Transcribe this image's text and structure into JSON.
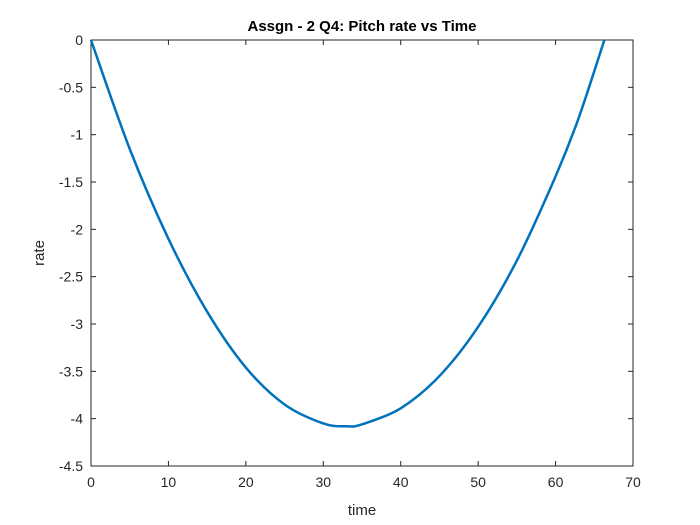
{
  "chart_data": {
    "type": "line",
    "title": "Assgn - 2 Q4: Pitch rate vs Time",
    "xlabel": "time",
    "ylabel": "rate",
    "xlim": [
      0,
      70
    ],
    "ylim": [
      -4.5,
      0
    ],
    "xticks": [
      0,
      10,
      20,
      30,
      40,
      50,
      60,
      70
    ],
    "xtick_labels": [
      "0",
      "10",
      "20",
      "30",
      "40",
      "50",
      "60",
      "70"
    ],
    "yticks": [
      0,
      -0.5,
      -1,
      -1.5,
      -2,
      -2.5,
      -3,
      -3.5,
      -4,
      -4.5
    ],
    "ytick_labels": [
      "0",
      "-0.5",
      "-1",
      "-1.5",
      "-2",
      "-2.5",
      "-3",
      "-3.5",
      "-4",
      "-4.5"
    ],
    "grid": false,
    "series": [
      {
        "color": "#0072BD",
        "x": [
          0,
          5,
          10,
          15,
          20,
          25,
          30,
          33,
          35,
          40,
          45,
          50,
          55,
          60,
          63,
          66.3
        ],
        "y": [
          0,
          -1.15,
          -2.1,
          -2.87,
          -3.46,
          -3.85,
          -4.05,
          -4.08,
          -4.06,
          -3.89,
          -3.55,
          -3.03,
          -2.33,
          -1.44,
          -0.82,
          0
        ]
      }
    ]
  }
}
